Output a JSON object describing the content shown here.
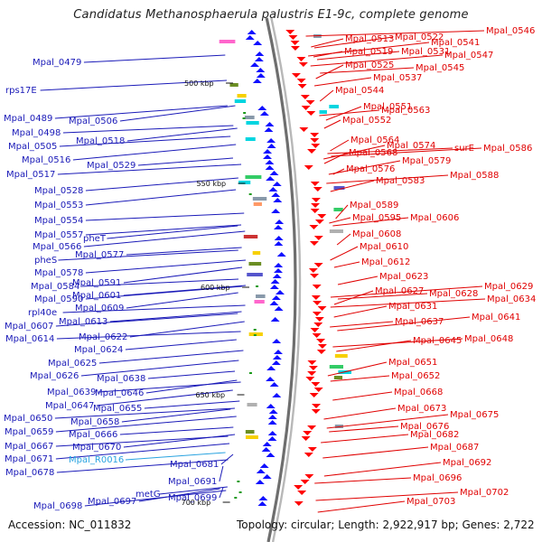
{
  "title": "Candidatus Methanosphaerula palustris E1-9c, complete genome",
  "footer": {
    "accession_text": "Accession: NC_011832",
    "summary_text": "Topology: circular; Length: 2,922,917 bp; Genes: 2,722"
  },
  "colors": {
    "forward_label": "#1a1ab8",
    "reverse_label": "#e00000",
    "rna_label": "#29a3e0",
    "backbone": "#8c8c8c",
    "forward_gene": "#1010ff",
    "reverse_gene": "#ff0000"
  },
  "ticks": [
    {
      "label": "500 kbp"
    },
    {
      "label": "550 kbp"
    },
    {
      "label": "600 kbp"
    },
    {
      "label": "650 kbp"
    },
    {
      "label": "700 kbp"
    }
  ],
  "left_labels": [
    {
      "text": "Mpal_0479",
      "type": "forward"
    },
    {
      "text": "rps17E",
      "type": "forward"
    },
    {
      "text": "Mpal_0489",
      "type": "forward"
    },
    {
      "text": "Mpal_0506",
      "type": "forward"
    },
    {
      "text": "Mpal_0498",
      "type": "forward"
    },
    {
      "text": "Mpal_0505",
      "type": "forward"
    },
    {
      "text": "Mpal_0518",
      "type": "forward"
    },
    {
      "text": "Mpal_0516",
      "type": "forward"
    },
    {
      "text": "Mpal_0529",
      "type": "forward"
    },
    {
      "text": "Mpal_0517",
      "type": "forward"
    },
    {
      "text": "Mpal_0528",
      "type": "forward"
    },
    {
      "text": "Mpal_0553",
      "type": "forward"
    },
    {
      "text": "Mpal_0554",
      "type": "forward"
    },
    {
      "text": "Mpal_0557",
      "type": "forward"
    },
    {
      "text": "pheT",
      "type": "forward"
    },
    {
      "text": "Mpal_0566",
      "type": "forward"
    },
    {
      "text": "Mpal_0577",
      "type": "forward"
    },
    {
      "text": "pheS",
      "type": "forward"
    },
    {
      "text": "Mpal_0578",
      "type": "forward"
    },
    {
      "text": "Mpal_0591",
      "type": "forward"
    },
    {
      "text": "Mpal_0584",
      "type": "forward"
    },
    {
      "text": "Mpal_0601",
      "type": "forward"
    },
    {
      "text": "Mpal_0590",
      "type": "forward"
    },
    {
      "text": "Mpal_0609",
      "type": "forward"
    },
    {
      "text": "rpl40e",
      "type": "forward"
    },
    {
      "text": "Mpal_0613",
      "type": "forward"
    },
    {
      "text": "Mpal_0607",
      "type": "forward"
    },
    {
      "text": "Mpal_0622",
      "type": "forward"
    },
    {
      "text": "Mpal_0614",
      "type": "forward"
    },
    {
      "text": "Mpal_0624",
      "type": "forward"
    },
    {
      "text": "Mpal_0625",
      "type": "forward"
    },
    {
      "text": "Mpal_0626",
      "type": "forward"
    },
    {
      "text": "Mpal_0638",
      "type": "forward"
    },
    {
      "text": "Mpal_0639",
      "type": "forward"
    },
    {
      "text": "Mpal_0646",
      "type": "forward"
    },
    {
      "text": "Mpal_0647",
      "type": "forward"
    },
    {
      "text": "Mpal_0655",
      "type": "forward"
    },
    {
      "text": "Mpal_0650",
      "type": "forward"
    },
    {
      "text": "Mpal_0658",
      "type": "forward"
    },
    {
      "text": "Mpal_0659",
      "type": "forward"
    },
    {
      "text": "Mpal_0666",
      "type": "forward"
    },
    {
      "text": "Mpal_0667",
      "type": "forward"
    },
    {
      "text": "Mpal_0670",
      "type": "forward"
    },
    {
      "text": "Mpal_0671",
      "type": "forward"
    },
    {
      "text": "Mpal_R0016",
      "type": "rna"
    },
    {
      "text": "Mpal_0681",
      "type": "forward"
    },
    {
      "text": "Mpal_0678",
      "type": "forward"
    },
    {
      "text": "Mpal_0691",
      "type": "forward"
    },
    {
      "text": "metG",
      "type": "forward"
    },
    {
      "text": "Mpal_0699",
      "type": "forward"
    },
    {
      "text": "Mpal_0697",
      "type": "forward"
    },
    {
      "text": "Mpal_0698",
      "type": "forward"
    }
  ],
  "right_labels": [
    {
      "text": "Mpal_0546"
    },
    {
      "text": "Mpal_0513"
    },
    {
      "text": "Mpal_0522"
    },
    {
      "text": "Mpal_0541"
    },
    {
      "text": "Mpal_0519"
    },
    {
      "text": "Mpal_0531"
    },
    {
      "text": "Mpal_0547"
    },
    {
      "text": "Mpal_0525"
    },
    {
      "text": "Mpal_0545"
    },
    {
      "text": "Mpal_0537"
    },
    {
      "text": "Mpal_0544"
    },
    {
      "text": "Mpal_0551"
    },
    {
      "text": "Mpal_0563"
    },
    {
      "text": "Mpal_0552"
    },
    {
      "text": "Mpal_0564"
    },
    {
      "text": "Mpal_0574"
    },
    {
      "text": "surE"
    },
    {
      "text": "Mpal_0586"
    },
    {
      "text": "Mpal_0568"
    },
    {
      "text": "Mpal_0579"
    },
    {
      "text": "Mpal_0576"
    },
    {
      "text": "Mpal_0588"
    },
    {
      "text": "Mpal_0583"
    },
    {
      "text": "Mpal_0589"
    },
    {
      "text": "Mpal_0595"
    },
    {
      "text": "Mpal_0606"
    },
    {
      "text": "Mpal_0608"
    },
    {
      "text": "Mpal_0610"
    },
    {
      "text": "Mpal_0612"
    },
    {
      "text": "Mpal_0623"
    },
    {
      "text": "Mpal_0629"
    },
    {
      "text": "Mpal_0627"
    },
    {
      "text": "Mpal_0628"
    },
    {
      "text": "Mpal_0634"
    },
    {
      "text": "Mpal_0631"
    },
    {
      "text": "Mpal_0641"
    },
    {
      "text": "Mpal_0637"
    },
    {
      "text": "Mpal_0648"
    },
    {
      "text": "Mpal_0645"
    },
    {
      "text": "Mpal_0651"
    },
    {
      "text": "Mpal_0652"
    },
    {
      "text": "Mpal_0668"
    },
    {
      "text": "Mpal_0673"
    },
    {
      "text": "Mpal_0675"
    },
    {
      "text": "Mpal_0676"
    },
    {
      "text": "Mpal_0682"
    },
    {
      "text": "Mpal_0687"
    },
    {
      "text": "Mpal_0692"
    },
    {
      "text": "Mpal_0696"
    },
    {
      "text": "Mpal_0702"
    },
    {
      "text": "Mpal_0703"
    }
  ]
}
